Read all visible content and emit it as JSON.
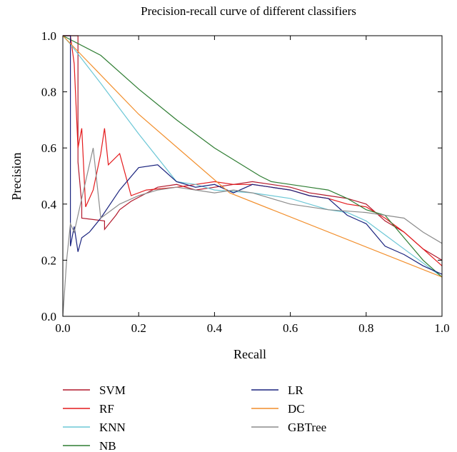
{
  "chart_data": {
    "type": "line",
    "title": "Precision-recall curve of different classifiers",
    "xlabel": "Recall",
    "ylabel": "Precision",
    "xlim": [
      0.0,
      1.0
    ],
    "ylim": [
      0.0,
      1.0
    ],
    "xticks": [
      "0.0",
      "0.2",
      "0.4",
      "0.6",
      "0.8",
      "1.0"
    ],
    "yticks": [
      "0.0",
      "0.2",
      "0.4",
      "0.6",
      "0.8",
      "1.0"
    ],
    "grid": false,
    "legend_position": "below",
    "series": [
      {
        "name": "SVM",
        "color": "#b2182b",
        "x": [
          0.0,
          0.04,
          0.04,
          0.05,
          0.05,
          0.11,
          0.11,
          0.14,
          0.15,
          0.18,
          0.25,
          0.3,
          0.35,
          0.4,
          0.45,
          0.5,
          0.55,
          0.6,
          0.65,
          0.7,
          0.75,
          0.8,
          0.85,
          0.9,
          0.95,
          1.0
        ],
        "y": [
          1.0,
          1.0,
          0.55,
          0.4,
          0.35,
          0.34,
          0.31,
          0.36,
          0.38,
          0.41,
          0.46,
          0.47,
          0.45,
          0.46,
          0.47,
          0.48,
          0.47,
          0.46,
          0.44,
          0.43,
          0.42,
          0.4,
          0.34,
          0.3,
          0.24,
          0.2
        ]
      },
      {
        "name": "RF",
        "color": "#e41a1c",
        "x": [
          0.0,
          0.02,
          0.03,
          0.04,
          0.05,
          0.06,
          0.08,
          0.1,
          0.11,
          0.12,
          0.15,
          0.18,
          0.22,
          0.3,
          0.35,
          0.4,
          0.45,
          0.5,
          0.55,
          0.6,
          0.65,
          0.7,
          0.75,
          0.8,
          0.85,
          0.9,
          0.95,
          1.0
        ],
        "y": [
          1.0,
          1.0,
          0.9,
          0.6,
          0.67,
          0.39,
          0.45,
          0.58,
          0.67,
          0.54,
          0.58,
          0.43,
          0.45,
          0.46,
          0.47,
          0.48,
          0.47,
          0.47,
          0.46,
          0.45,
          0.43,
          0.42,
          0.4,
          0.39,
          0.35,
          0.3,
          0.24,
          0.18
        ]
      },
      {
        "name": "KNN",
        "color": "#6cc7d6",
        "x": [
          0.0,
          0.02,
          0.1,
          0.2,
          0.3,
          0.35,
          0.4,
          0.5,
          0.6,
          0.7,
          0.75,
          0.8,
          0.85,
          0.9,
          1.0
        ],
        "y": [
          1.0,
          0.97,
          0.83,
          0.65,
          0.48,
          0.47,
          0.45,
          0.44,
          0.42,
          0.38,
          0.37,
          0.34,
          0.29,
          0.24,
          0.14
        ]
      },
      {
        "name": "NB",
        "color": "#2e7d32",
        "x": [
          0.0,
          0.1,
          0.2,
          0.3,
          0.4,
          0.52,
          0.55,
          0.6,
          0.65,
          0.7,
          0.75,
          0.8,
          0.85,
          0.9,
          0.95,
          1.0
        ],
        "y": [
          1.0,
          0.93,
          0.81,
          0.7,
          0.6,
          0.5,
          0.48,
          0.47,
          0.46,
          0.45,
          0.42,
          0.38,
          0.36,
          0.28,
          0.2,
          0.14
        ]
      },
      {
        "name": "LR",
        "color": "#1a237e",
        "x": [
          0.0,
          0.02,
          0.02,
          0.03,
          0.04,
          0.05,
          0.07,
          0.1,
          0.15,
          0.2,
          0.25,
          0.3,
          0.35,
          0.4,
          0.45,
          0.5,
          0.55,
          0.6,
          0.65,
          0.7,
          0.75,
          0.8,
          0.85,
          0.9,
          0.95,
          1.0
        ],
        "y": [
          1.0,
          1.0,
          0.25,
          0.32,
          0.23,
          0.28,
          0.3,
          0.35,
          0.45,
          0.53,
          0.54,
          0.48,
          0.46,
          0.47,
          0.44,
          0.47,
          0.46,
          0.45,
          0.43,
          0.42,
          0.36,
          0.33,
          0.25,
          0.22,
          0.18,
          0.15
        ]
      },
      {
        "name": "DC",
        "color": "#f28e2b",
        "x": [
          0.0,
          0.2,
          0.44,
          1.0
        ],
        "y": [
          1.0,
          0.72,
          0.44,
          0.14
        ]
      },
      {
        "name": "GBTree",
        "color": "#8c8c8c",
        "x": [
          0.0,
          0.005,
          0.01,
          0.02,
          0.03,
          0.05,
          0.08,
          0.1,
          0.15,
          0.2,
          0.25,
          0.3,
          0.35,
          0.4,
          0.45,
          0.5,
          0.6,
          0.7,
          0.8,
          0.85,
          0.9,
          0.95,
          1.0
        ],
        "y": [
          0.0,
          0.1,
          0.2,
          0.33,
          0.3,
          0.42,
          0.6,
          0.35,
          0.4,
          0.43,
          0.45,
          0.46,
          0.45,
          0.44,
          0.45,
          0.44,
          0.4,
          0.38,
          0.37,
          0.36,
          0.35,
          0.3,
          0.26
        ]
      }
    ]
  }
}
